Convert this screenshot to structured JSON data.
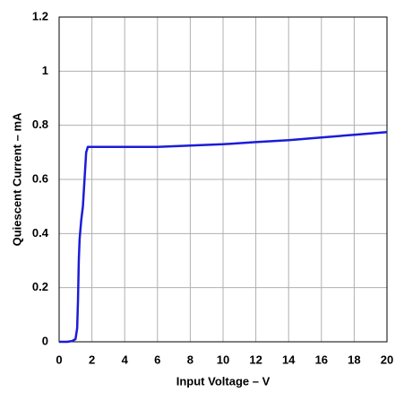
{
  "chart_data": {
    "type": "line",
    "x_label": "Input Voltage – V",
    "y_label": "Quiescent Current – mA",
    "x": [
      0,
      0.5,
      0.8,
      1.0,
      1.1,
      1.15,
      1.2,
      1.25,
      1.35,
      1.45,
      1.55,
      1.65,
      1.75,
      2,
      4,
      6,
      8,
      10,
      12,
      14,
      16,
      18,
      20
    ],
    "series": [
      {
        "color": "#1c1cd8",
        "values": [
          0,
          0,
          0.003,
          0.01,
          0.05,
          0.15,
          0.3,
          0.38,
          0.45,
          0.5,
          0.6,
          0.7,
          0.72,
          0.72,
          0.72,
          0.72,
          0.725,
          0.73,
          0.738,
          0.745,
          0.755,
          0.765,
          0.775
        ]
      }
    ],
    "xlim": [
      0,
      20
    ],
    "xticks": [
      0,
      2,
      4,
      6,
      8,
      10,
      12,
      14,
      16,
      18,
      20
    ],
    "ylim": [
      0,
      1.2
    ],
    "yticks": [
      0,
      0.2,
      0.4,
      0.6,
      0.8,
      1,
      1.2
    ],
    "grid": true
  }
}
